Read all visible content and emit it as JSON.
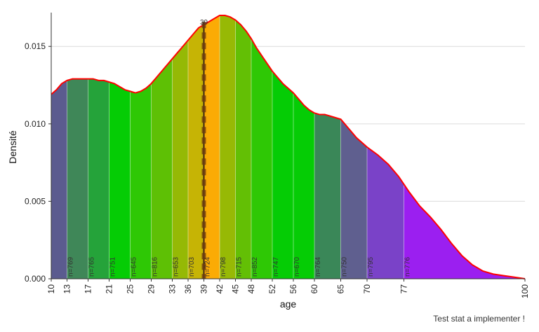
{
  "chart_data": {
    "type": "area",
    "title": "",
    "xlabel": "age",
    "ylabel": "Densité",
    "xlim": [
      10,
      100
    ],
    "ylim": [
      0,
      0.017
    ],
    "yticks": [
      0,
      0.005,
      0.01,
      0.015
    ],
    "ytick_labels": [
      "0.000",
      "0.005",
      "0.010",
      "0.015"
    ],
    "xticks": [
      10,
      13,
      17,
      21,
      25,
      29,
      33,
      36,
      39,
      42,
      45,
      48,
      52,
      56,
      60,
      65,
      70,
      77,
      100
    ],
    "xtick_labels": [
      "10",
      "13",
      "17",
      "21",
      "25",
      "29",
      "33",
      "36",
      "39",
      "42",
      "45",
      "48",
      "52",
      "56",
      "60",
      "65",
      "70",
      "77",
      "100"
    ],
    "grid": "horizontal",
    "density_curve": {
      "color": "#ff0000",
      "x": [
        10,
        11,
        12,
        13,
        14,
        15,
        16,
        17,
        18,
        19,
        20,
        21,
        22,
        23,
        24,
        25,
        26,
        27,
        28,
        29,
        30,
        31,
        32,
        33,
        34,
        35,
        36,
        37,
        38,
        39,
        40,
        41,
        42,
        43,
        44,
        45,
        46,
        47,
        48,
        49,
        50,
        51,
        52,
        53,
        54,
        55,
        56,
        57,
        58,
        59,
        60,
        61,
        62,
        63,
        64,
        65,
        66,
        67,
        68,
        69,
        70,
        72,
        74,
        76,
        78,
        80,
        82,
        84,
        86,
        88,
        90,
        92,
        94,
        96,
        98,
        100
      ],
      "y": [
        0.0119,
        0.0122,
        0.0126,
        0.0128,
        0.0129,
        0.0129,
        0.0129,
        0.0129,
        0.0129,
        0.0128,
        0.0128,
        0.0127,
        0.0126,
        0.0124,
        0.0122,
        0.0121,
        0.012,
        0.0121,
        0.0123,
        0.0126,
        0.013,
        0.0134,
        0.0138,
        0.0142,
        0.0146,
        0.015,
        0.0154,
        0.0158,
        0.0162,
        0.0164,
        0.0166,
        0.0168,
        0.017,
        0.017,
        0.0169,
        0.0167,
        0.0164,
        0.016,
        0.0155,
        0.0149,
        0.0144,
        0.0139,
        0.0134,
        0.013,
        0.0126,
        0.0123,
        0.012,
        0.0116,
        0.0112,
        0.0109,
        0.0107,
        0.0106,
        0.0106,
        0.0105,
        0.0104,
        0.0103,
        0.0099,
        0.0095,
        0.0091,
        0.0088,
        0.0085,
        0.008,
        0.0074,
        0.0066,
        0.0056,
        0.0047,
        0.004,
        0.0032,
        0.0023,
        0.0015,
        0.0009,
        0.0005,
        0.0003,
        0.0002,
        0.0001,
        0.0
      ]
    },
    "bins": [
      {
        "start": 10,
        "end": 13,
        "label": "",
        "color": "#5b5b8f"
      },
      {
        "start": 13,
        "end": 17,
        "label": "n=769",
        "color": "#3f8758"
      },
      {
        "start": 17,
        "end": 21,
        "label": "n=765",
        "color": "#25a33a"
      },
      {
        "start": 21,
        "end": 25,
        "label": "n=751",
        "color": "#05cc05"
      },
      {
        "start": 25,
        "end": 29,
        "label": "n=645",
        "color": "#2ec805"
      },
      {
        "start": 29,
        "end": 33,
        "label": "n=816",
        "color": "#5ec005"
      },
      {
        "start": 33,
        "end": 36,
        "label": "n=653",
        "color": "#95b905"
      },
      {
        "start": 36,
        "end": 39,
        "label": "n=703",
        "color": "#c6b405"
      },
      {
        "start": 39,
        "end": 42,
        "label": "n=724",
        "color": "#fbab05"
      },
      {
        "start": 42,
        "end": 45,
        "label": "n=798",
        "color": "#97b905"
      },
      {
        "start": 45,
        "end": 48,
        "label": "n=715",
        "color": "#63bf05"
      },
      {
        "start": 48,
        "end": 52,
        "label": "n=852",
        "color": "#2ec805"
      },
      {
        "start": 52,
        "end": 56,
        "label": "n=747",
        "color": "#05cc05"
      },
      {
        "start": 56,
        "end": 60,
        "label": "n=670",
        "color": "#05cc05"
      },
      {
        "start": 60,
        "end": 65,
        "label": "n=764",
        "color": "#3a8758"
      },
      {
        "start": 65,
        "end": 70,
        "label": "n=750",
        "color": "#5f5f8f"
      },
      {
        "start": 70,
        "end": 77,
        "label": "n=795",
        "color": "#7a42c8"
      },
      {
        "start": 77,
        "end": 100,
        "label": "n=776",
        "color": "#9b1ff0"
      }
    ],
    "marker": {
      "x": 39,
      "label": "39",
      "color": "#6b3a12"
    }
  },
  "footer": {
    "note": "Test stat a implementer !"
  }
}
